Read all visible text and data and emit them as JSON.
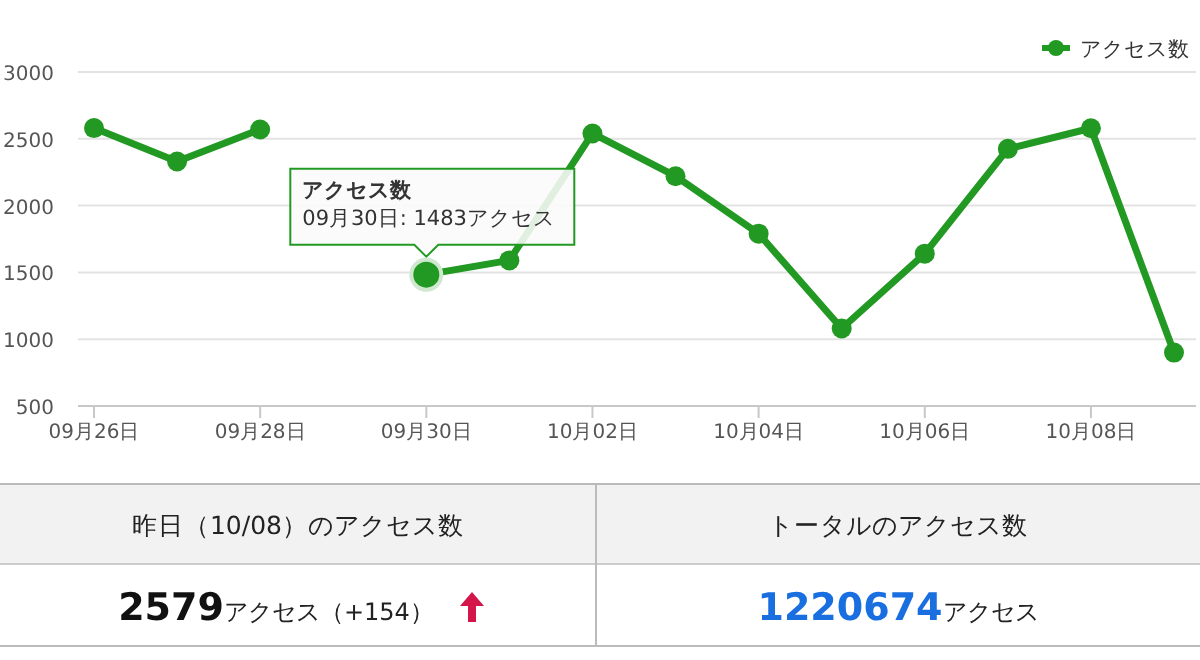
{
  "chart_data": [
    {
      "type": "line",
      "categories": [
        "09月26日",
        null,
        "09月28日",
        null,
        "09月30日",
        null,
        "10月02日",
        null,
        "10月04日",
        null,
        "10月06日",
        null,
        "10月08日",
        null
      ],
      "series": [
        {
          "name": "アクセス数",
          "color": "#229922",
          "values": [
            2580,
            2330,
            2570,
            null,
            1483,
            1590,
            2540,
            2220,
            1790,
            1080,
            1640,
            2425,
            2579,
            900
          ]
        }
      ],
      "ylim": [
        500,
        3000
      ],
      "yticks": [
        500,
        1000,
        1500,
        2000,
        2500,
        3000
      ],
      "grid": "y",
      "legend": "top right",
      "marker": "circle",
      "line_style": "solid",
      "annotations": [
        {
          "text": "アクセス数\n09月30日: 1483アクセス",
          "x": "09月30日",
          "y": 1483
        }
      ]
    },
    {
      "type": "other",
      "annotations": [
        "昨日（10/08）のアクセス数",
        "トータルのアクセス数",
        "2579",
        "アクセス（+154）",
        "1220674",
        "アクセス"
      ]
    }
  ]
}
